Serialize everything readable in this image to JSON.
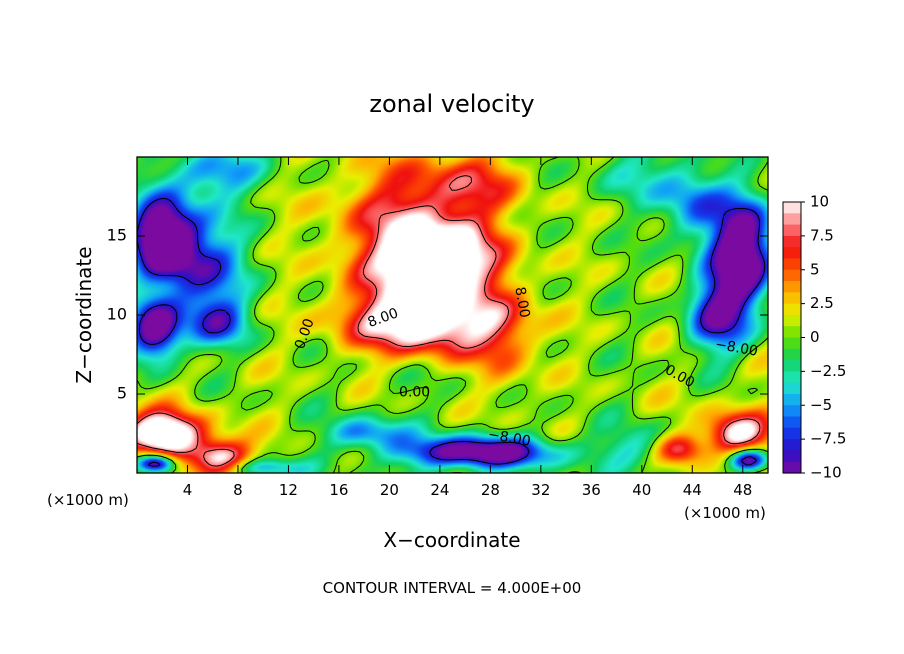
{
  "chart_data": {
    "type": "heatmap",
    "title": "zonal velocity",
    "xlabel": "X−coordinate",
    "ylabel": "Z−coordinate",
    "x_unit": "(×1000 m)",
    "y_unit": "(×1000 m)",
    "xlim": [
      0,
      50
    ],
    "ylim": [
      0,
      20
    ],
    "xticks": [
      "4",
      "8",
      "12",
      "16",
      "20",
      "24",
      "28",
      "32",
      "36",
      "40",
      "44",
      "48"
    ],
    "xtick_values": [
      4,
      8,
      12,
      16,
      20,
      24,
      28,
      32,
      36,
      40,
      44,
      48
    ],
    "yticks": [
      "5",
      "10",
      "15"
    ],
    "ytick_values": [
      5,
      10,
      15
    ],
    "footer": "CONTOUR INTERVAL = 4.000E+00",
    "colorbar": {
      "range": [
        -10,
        10
      ],
      "tick_labels": [
        "10",
        "7.5",
        "5",
        "2.5",
        "0",
        "−2.5",
        "−5",
        "−7.5",
        "−10"
      ],
      "tick_values": [
        10,
        7.5,
        5,
        2.5,
        0,
        -2.5,
        -5,
        -7.5,
        -10
      ],
      "colors": [
        "#7a0aa0",
        "#2a10c8",
        "#1040f0",
        "#10a0f8",
        "#20e8c8",
        "#10d060",
        "#60e000",
        "#e8f000",
        "#ffb000",
        "#ff5000",
        "#f01010",
        "#ff8080",
        "#ffffff"
      ]
    },
    "contour_labels": [
      {
        "text": "8.00",
        "x": 19.5,
        "y": 9.8,
        "angle": -20
      },
      {
        "text": "8.00",
        "x": 30.5,
        "y": 10.8,
        "angle": 80
      },
      {
        "text": "0.00",
        "x": 13.3,
        "y": 8.8,
        "angle": -70
      },
      {
        "text": "0.00",
        "x": 22.0,
        "y": 5.1,
        "angle": 0
      },
      {
        "text": "0.00",
        "x": 43.0,
        "y": 6.1,
        "angle": 30
      },
      {
        "text": "−8.00",
        "x": 29.5,
        "y": 2.2,
        "angle": 10
      },
      {
        "text": "−8.00",
        "x": 47.5,
        "y": 7.9,
        "angle": 10
      }
    ],
    "field_features": [
      {
        "x": 24,
        "y": 13.5,
        "sx": 4.5,
        "sy": 2.2,
        "amp": 12
      },
      {
        "x": 23,
        "y": 9.5,
        "sx": 6.0,
        "sy": 2.0,
        "amp": 12
      },
      {
        "x": 22,
        "y": 16.5,
        "sx": 6.0,
        "sy": 3.5,
        "amp": 7
      },
      {
        "x": 27,
        "y": 18.5,
        "sx": 4.0,
        "sy": 2.0,
        "amp": 4
      },
      {
        "x": 29,
        "y": 8.5,
        "sx": 2.5,
        "sy": 4.0,
        "amp": 4
      },
      {
        "x": 20,
        "y": 12.0,
        "sx": 4.5,
        "sy": 3.0,
        "amp": 3
      },
      {
        "x": 2,
        "y": 15.0,
        "sx": 2.5,
        "sy": 2.5,
        "amp": -14
      },
      {
        "x": 1.5,
        "y": 9.0,
        "sx": 2.0,
        "sy": 2.0,
        "amp": -12
      },
      {
        "x": 5,
        "y": 13.0,
        "sx": 3.5,
        "sy": 3.5,
        "amp": -8
      },
      {
        "x": 6.5,
        "y": 9.5,
        "sx": 2.5,
        "sy": 1.5,
        "amp": -6
      },
      {
        "x": 48,
        "y": 14.0,
        "sx": 2.5,
        "sy": 3.5,
        "amp": -14
      },
      {
        "x": 46,
        "y": 10.0,
        "sx": 2.5,
        "sy": 2.5,
        "amp": -9
      },
      {
        "x": 44,
        "y": 17.0,
        "sx": 2.5,
        "sy": 2.5,
        "amp": -6
      },
      {
        "x": 27,
        "y": 1.3,
        "sx": 6.0,
        "sy": 1.0,
        "amp": -12
      },
      {
        "x": 18,
        "y": 2.5,
        "sx": 3.0,
        "sy": 1.0,
        "amp": -6
      },
      {
        "x": 10,
        "y": 0.3,
        "sx": 3.0,
        "sy": 0.6,
        "amp": -6
      },
      {
        "x": 40,
        "y": 1.5,
        "sx": 3.5,
        "sy": 1.5,
        "amp": -4
      },
      {
        "x": 2,
        "y": 2.5,
        "sx": 3.0,
        "sy": 1.3,
        "amp": 14
      },
      {
        "x": 6.5,
        "y": 1.0,
        "sx": 2.5,
        "sy": 1.2,
        "amp": 10
      },
      {
        "x": 47.5,
        "y": 2.5,
        "sx": 2.5,
        "sy": 1.3,
        "amp": 10
      },
      {
        "x": 43,
        "y": 1.5,
        "sx": 2.0,
        "sy": 1.0,
        "amp": 8
      },
      {
        "x": 1.5,
        "y": 0.6,
        "sx": 1.5,
        "sy": 0.6,
        "amp": -14
      },
      {
        "x": 48.5,
        "y": 0.8,
        "sx": 1.5,
        "sy": 0.7,
        "amp": -12
      },
      {
        "x": 6,
        "y": 19.0,
        "sx": 4.0,
        "sy": 1.5,
        "amp": -6
      },
      {
        "x": 40,
        "y": 19.0,
        "sx": 4.0,
        "sy": 2.0,
        "amp": -3
      }
    ]
  }
}
